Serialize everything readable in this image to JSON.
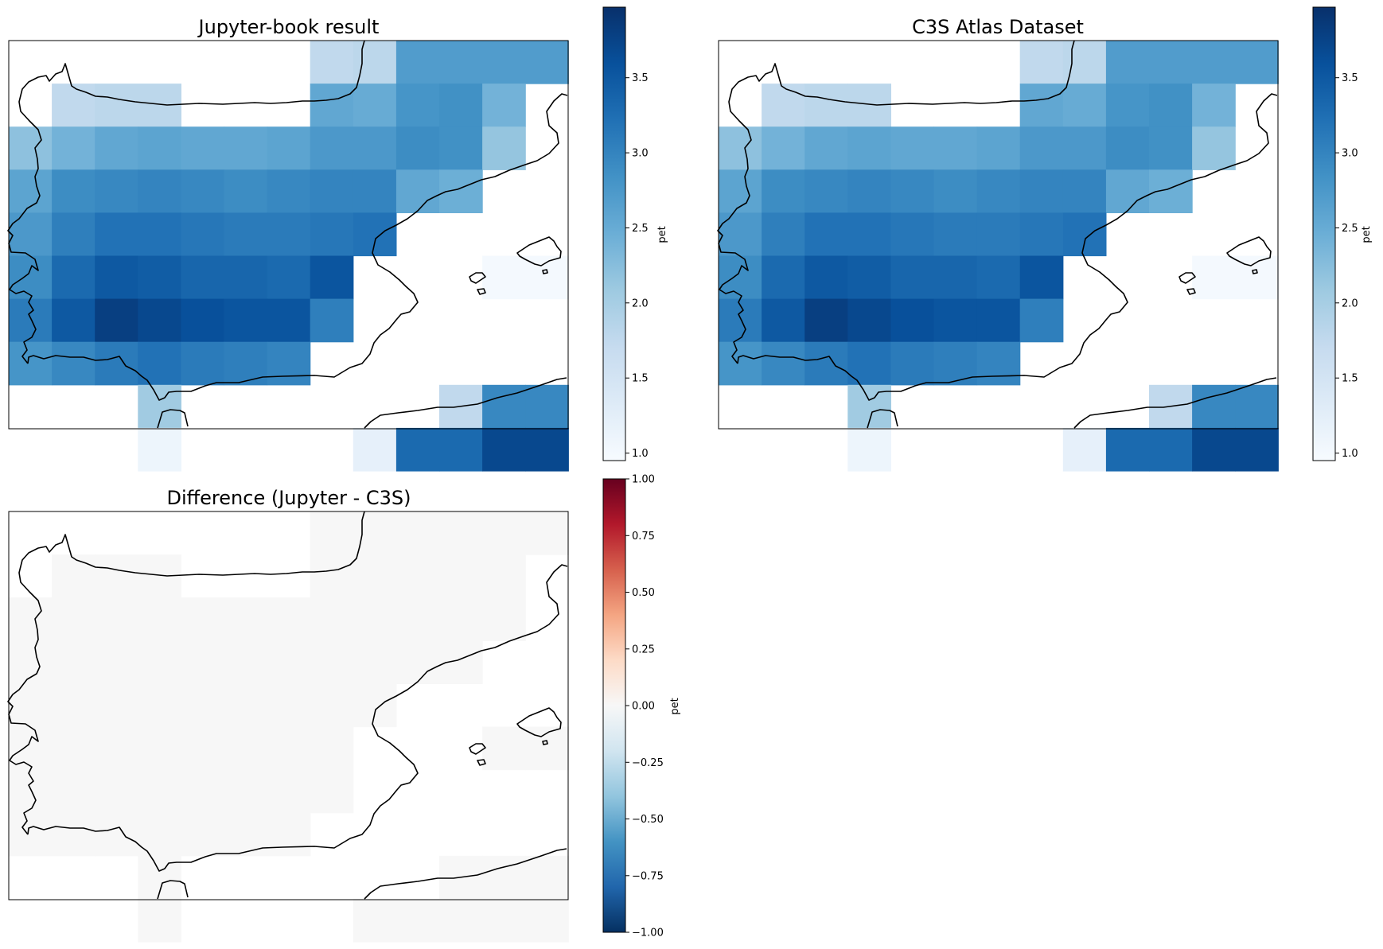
{
  "chart_data": [
    {
      "type": "heatmap",
      "title": "Jupyter-book result",
      "colormap": "Blues",
      "colorbar": {
        "label": "pet",
        "min": 0.95,
        "max": 3.97,
        "ticks": [
          "1.0",
          "1.5",
          "2.0",
          "2.5",
          "3.0",
          "3.5"
        ]
      },
      "grid": [
        [
          null,
          null,
          null,
          null,
          null,
          null,
          null,
          1.75,
          1.8,
          2.7,
          2.7,
          2.7,
          2.7
        ],
        [
          null,
          1.75,
          1.8,
          1.8,
          null,
          null,
          null,
          2.55,
          2.5,
          2.8,
          2.85,
          2.4,
          null
        ],
        [
          2.2,
          2.4,
          2.55,
          2.6,
          2.55,
          2.55,
          2.6,
          2.75,
          2.75,
          2.9,
          2.85,
          2.15,
          null
        ],
        [
          2.6,
          2.9,
          2.95,
          3.0,
          2.95,
          2.9,
          2.95,
          3.0,
          3.0,
          2.55,
          2.45,
          null,
          null
        ],
        [
          2.75,
          3.05,
          3.2,
          3.2,
          3.15,
          3.1,
          3.1,
          3.15,
          3.2,
          null,
          null,
          null,
          null
        ],
        [
          2.9,
          3.3,
          3.5,
          3.45,
          3.35,
          3.35,
          3.3,
          3.55,
          null,
          null,
          null,
          1.0,
          1.0
        ],
        [
          3.1,
          3.5,
          3.8,
          3.7,
          3.6,
          3.55,
          3.55,
          3.05,
          null,
          null,
          null,
          null,
          null
        ],
        [
          2.8,
          2.95,
          3.1,
          3.2,
          3.1,
          3.05,
          3.0,
          null,
          null,
          null,
          null,
          null,
          null
        ],
        [
          null,
          null,
          null,
          2.05,
          null,
          null,
          null,
          null,
          null,
          null,
          1.75,
          2.95,
          2.95
        ],
        [
          null,
          null,
          null,
          1.1,
          null,
          null,
          null,
          null,
          1.2,
          3.3,
          3.3,
          3.7,
          3.7
        ]
      ]
    },
    {
      "type": "heatmap",
      "title": "C3S Atlas Dataset",
      "colormap": "Blues",
      "colorbar": {
        "label": "pet",
        "min": 0.95,
        "max": 3.97,
        "ticks": [
          "1.0",
          "1.5",
          "2.0",
          "2.5",
          "3.0",
          "3.5"
        ]
      },
      "grid": [
        [
          null,
          null,
          null,
          null,
          null,
          null,
          null,
          1.75,
          1.8,
          2.7,
          2.7,
          2.7,
          2.7
        ],
        [
          null,
          1.75,
          1.8,
          1.8,
          null,
          null,
          null,
          2.55,
          2.5,
          2.8,
          2.85,
          2.4,
          null
        ],
        [
          2.2,
          2.4,
          2.55,
          2.6,
          2.55,
          2.55,
          2.6,
          2.75,
          2.75,
          2.9,
          2.85,
          2.15,
          null
        ],
        [
          2.6,
          2.9,
          2.95,
          3.0,
          2.95,
          2.9,
          2.95,
          3.0,
          3.0,
          2.55,
          2.45,
          null,
          null
        ],
        [
          2.75,
          3.05,
          3.2,
          3.2,
          3.15,
          3.1,
          3.1,
          3.15,
          3.2,
          null,
          null,
          null,
          null
        ],
        [
          2.9,
          3.3,
          3.5,
          3.45,
          3.35,
          3.35,
          3.3,
          3.55,
          null,
          null,
          null,
          1.0,
          1.0
        ],
        [
          3.1,
          3.5,
          3.8,
          3.7,
          3.6,
          3.55,
          3.55,
          3.05,
          null,
          null,
          null,
          null,
          null
        ],
        [
          2.8,
          2.95,
          3.1,
          3.2,
          3.1,
          3.05,
          3.0,
          null,
          null,
          null,
          null,
          null,
          null
        ],
        [
          null,
          null,
          null,
          2.05,
          null,
          null,
          null,
          null,
          null,
          null,
          1.75,
          2.95,
          2.95
        ],
        [
          null,
          null,
          null,
          1.1,
          null,
          null,
          null,
          null,
          1.2,
          3.3,
          3.3,
          3.7,
          3.7
        ]
      ]
    },
    {
      "type": "heatmap",
      "title": "Difference (Jupyter - C3S)",
      "colormap": "RdBu_r",
      "colorbar": {
        "label": "pet",
        "min": -1.0,
        "max": 1.0,
        "ticks": [
          "−1.00",
          "−0.75",
          "−0.50",
          "−0.25",
          "0.00",
          "0.25",
          "0.50",
          "0.75",
          "1.00"
        ]
      },
      "grid": [
        [
          null,
          null,
          null,
          null,
          null,
          null,
          null,
          0,
          0,
          0,
          0,
          0,
          0
        ],
        [
          null,
          0,
          0,
          0,
          null,
          null,
          null,
          0,
          0,
          0,
          0,
          0,
          null
        ],
        [
          0,
          0,
          0,
          0,
          0,
          0,
          0,
          0,
          0,
          0,
          0,
          0,
          null
        ],
        [
          0,
          0,
          0,
          0,
          0,
          0,
          0,
          0,
          0,
          0,
          0,
          null,
          null
        ],
        [
          0,
          0,
          0,
          0,
          0,
          0,
          0,
          0,
          0,
          null,
          null,
          null,
          null
        ],
        [
          0,
          0,
          0,
          0,
          0,
          0,
          0,
          0,
          null,
          null,
          null,
          0,
          0
        ],
        [
          0,
          0,
          0,
          0,
          0,
          0,
          0,
          0,
          null,
          null,
          null,
          null,
          null
        ],
        [
          0,
          0,
          0,
          0,
          0,
          0,
          0,
          null,
          null,
          null,
          null,
          null,
          null
        ],
        [
          null,
          null,
          null,
          0,
          null,
          null,
          null,
          null,
          null,
          null,
          0,
          0,
          0
        ],
        [
          null,
          null,
          null,
          0,
          null,
          null,
          null,
          null,
          0,
          0,
          0,
          0,
          0
        ]
      ]
    }
  ]
}
